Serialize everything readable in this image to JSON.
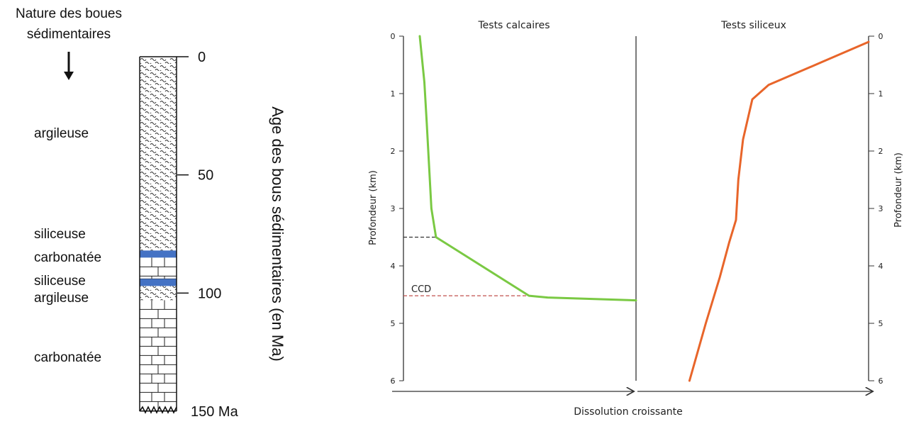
{
  "left_panel": {
    "heading_line1": "Nature des boues",
    "heading_line2": "sédimentaires",
    "age_axis_label": "Age des bous sédimentaires (en Ma)",
    "age_ticks": [
      "0",
      "50",
      "100",
      "150 Ma"
    ],
    "layers": [
      {
        "label": "argileuse",
        "type": "clay",
        "age_top": 0,
        "age_bottom": 82
      },
      {
        "label": "siliceuse",
        "type": "siliceous",
        "age_top": 82,
        "age_bottom": 85
      },
      {
        "label": "carbonatée",
        "type": "carbonate",
        "age_top": 85,
        "age_bottom": 94
      },
      {
        "label": "siliceuse",
        "type": "siliceous",
        "age_top": 94,
        "age_bottom": 97
      },
      {
        "label": "argileuse",
        "type": "clay",
        "age_top": 97,
        "age_bottom": 103
      },
      {
        "label": "carbonatée",
        "type": "carbonate",
        "age_top": 103,
        "age_bottom": 150
      }
    ],
    "colors": {
      "siliceous": "#4472c4",
      "line": "#111111"
    }
  },
  "chart": {
    "panel_titles": [
      "Tests calcaires",
      "Tests siliceux"
    ],
    "y_axis_label": "Profondeur (km)",
    "y_ticks": [
      "0",
      "1",
      "2",
      "3",
      "4",
      "5",
      "6"
    ],
    "x_axis_label": "Dissolution croissante",
    "ccd_label": "CCD",
    "colors": {
      "calcaire": "#7ac943",
      "siliceux": "#e8652a",
      "ccd_line": "#c0504d",
      "axis": "#333333"
    }
  },
  "chart_data": [
    {
      "type": "line",
      "title": "Tests calcaires",
      "ylabel": "Profondeur (km)",
      "xlabel": "Dissolution croissante",
      "ylim": [
        6,
        0
      ],
      "xlim": [
        0,
        1
      ],
      "series": [
        {
          "points": [
            [
              0.07,
              0
            ],
            [
              0.09,
              0.8
            ],
            [
              0.1,
              1.5
            ],
            [
              0.12,
              3.0
            ],
            [
              0.14,
              3.5
            ],
            [
              0.54,
              4.52
            ],
            [
              0.62,
              4.55
            ],
            [
              1.0,
              4.6
            ]
          ]
        }
      ],
      "annotations": [
        {
          "text": "CCD",
          "depth": 4.52
        },
        {
          "depth": 3.5
        }
      ]
    },
    {
      "type": "line",
      "title": "Tests siliceux",
      "ylabel": "Profondeur (km)",
      "ylim": [
        6,
        0
      ],
      "xlim": [
        0,
        1
      ],
      "series": [
        {
          "points": [
            [
              0.23,
              6.0
            ],
            [
              0.3,
              5.0
            ],
            [
              0.36,
              4.2
            ],
            [
              0.4,
              3.6
            ],
            [
              0.43,
              3.2
            ],
            [
              0.44,
              2.5
            ],
            [
              0.46,
              1.8
            ],
            [
              0.5,
              1.1
            ],
            [
              0.57,
              0.85
            ],
            [
              0.8,
              0.45
            ],
            [
              1.0,
              0.1
            ]
          ]
        }
      ]
    }
  ]
}
